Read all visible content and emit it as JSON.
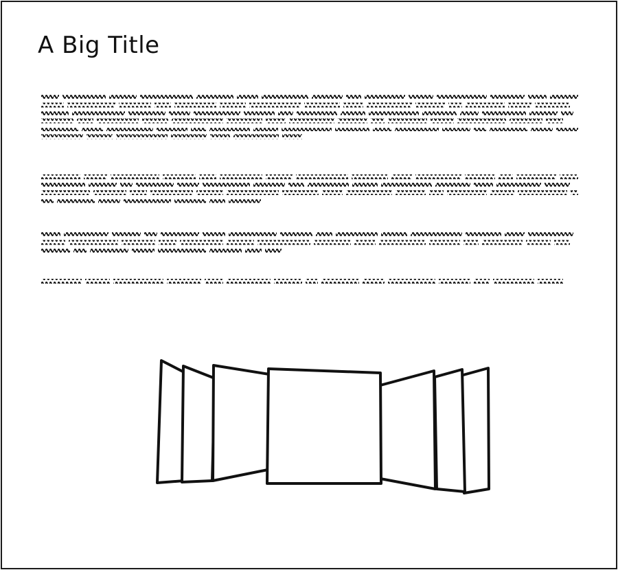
{
  "page": {
    "title": "A Big Title"
  },
  "body_text": {
    "paragraph_count": 4,
    "lines_per_paragraph": [
      6,
      4,
      3,
      1
    ],
    "rendering": "squiggle-placeholder"
  },
  "coverflow": {
    "left_cards": 3,
    "center_cards": 1,
    "right_cards": 3
  },
  "colors": {
    "ink": "#111111",
    "background": "#ffffff"
  }
}
